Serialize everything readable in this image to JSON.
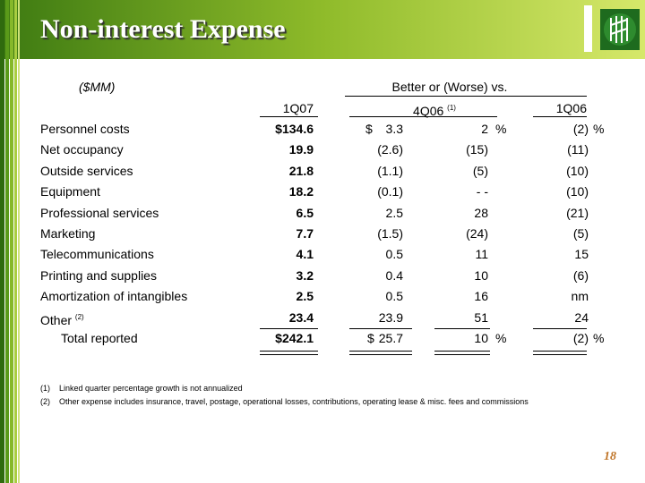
{
  "header": {
    "title": "Non-interest Expense"
  },
  "table": {
    "unit": "($MM)",
    "group_header": "Better or (Worse) vs.",
    "columns": {
      "q107": "1Q07",
      "q406": "4Q06",
      "q406_note": "(1)",
      "q106": "1Q06"
    },
    "rows": [
      {
        "label": "Personnel costs",
        "q107": "$134.6",
        "chg_cur": "$",
        "chg": "3.3",
        "pct": "2",
        "pct_unit": "%",
        "yoy": "(2)",
        "yoy_unit": "%"
      },
      {
        "label": "Net occupancy",
        "q107": "19.9",
        "chg": "(2.6)",
        "pct": "(15)",
        "yoy": "(11)"
      },
      {
        "label": "Outside services",
        "q107": "21.8",
        "chg": "(1.1)",
        "pct": "(5)",
        "yoy": "(10)"
      },
      {
        "label": "Equipment",
        "q107": "18.2",
        "chg": "(0.1)",
        "pct": "- -",
        "yoy": "(10)"
      },
      {
        "label": "Professional services",
        "q107": "6.5",
        "chg": "2.5",
        "pct": "28",
        "yoy": "(21)"
      },
      {
        "label": "Marketing",
        "q107": "7.7",
        "chg": "(1.5)",
        "pct": "(24)",
        "yoy": "(5)"
      },
      {
        "label": "Telecommunications",
        "q107": "4.1",
        "chg": "0.5",
        "pct": "11",
        "yoy": "15"
      },
      {
        "label": "Printing and supplies",
        "q107": "3.2",
        "chg": "0.4",
        "pct": "10",
        "yoy": "(6)"
      },
      {
        "label": "Amortization of intangibles",
        "q107": "2.5",
        "chg": "0.5",
        "pct": "16",
        "yoy": "nm"
      },
      {
        "label": "Other",
        "note": "(2)",
        "q107": "23.4",
        "chg": "23.9",
        "pct": "51",
        "yoy": "24"
      },
      {
        "label": "Total reported",
        "q107": "$242.1",
        "chg_cur": "$",
        "chg": "25.7",
        "pct": "10",
        "pct_unit": "%",
        "yoy": "(2)",
        "yoy_unit": "%"
      }
    ]
  },
  "footnotes": [
    {
      "marker": "(1)",
      "text": "Linked quarter percentage growth is not annualized"
    },
    {
      "marker": "(2)",
      "text": "Other expense includes insurance, travel, postage, operational losses, contributions, operating lease & misc. fees and commissions"
    }
  ],
  "page_number": "18"
}
